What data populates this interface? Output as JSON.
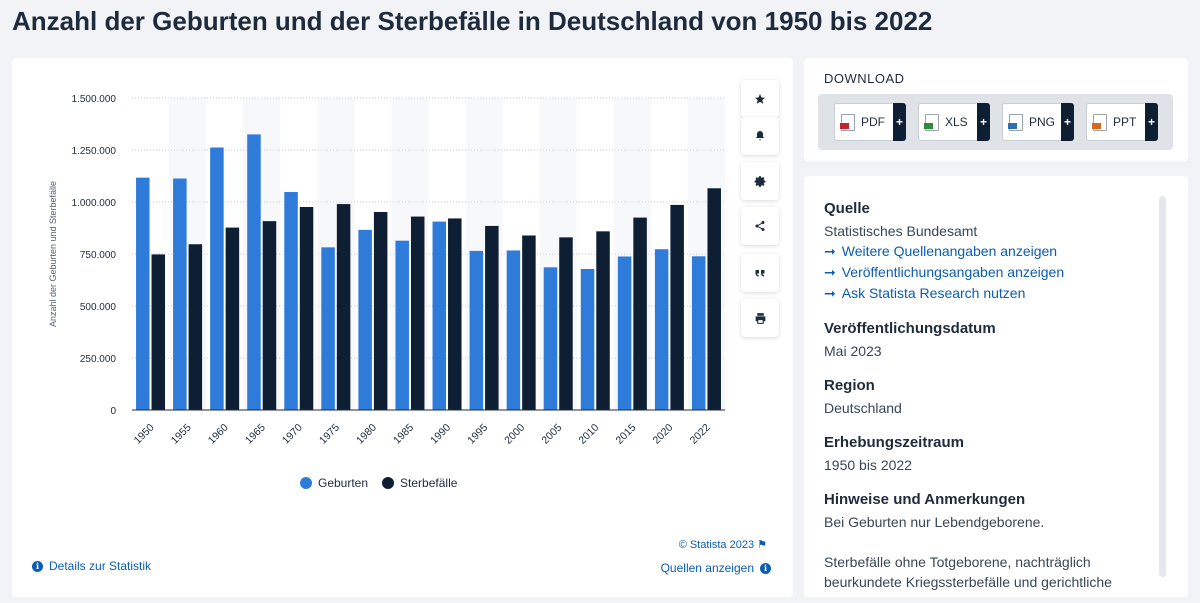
{
  "title": "Anzahl der Geburten und der Sterbefälle in Deutschland von 1950 bis 2022",
  "chart_data": {
    "type": "bar",
    "ylabel": "Anzahl der Geburten und Sterbefälle",
    "xlabel": "",
    "ylim": [
      0,
      1500000
    ],
    "yticks": [
      0,
      250000,
      500000,
      750000,
      1000000,
      1250000,
      1500000
    ],
    "ytick_labels": [
      "0",
      "250.000",
      "500.000",
      "750.000",
      "1.000.000",
      "1.250.000",
      "1.500.000"
    ],
    "categories": [
      "1950",
      "1955",
      "1960",
      "1965",
      "1970",
      "1975",
      "1980",
      "1985",
      "1990",
      "1995",
      "2000",
      "2005",
      "2010",
      "2015",
      "2020",
      "2022"
    ],
    "series": [
      {
        "name": "Geburten",
        "color": "#2f7bd9",
        "values": [
          1117000,
          1113000,
          1262000,
          1325000,
          1048000,
          782000,
          866000,
          814000,
          906000,
          765000,
          767000,
          686000,
          678000,
          738000,
          773000,
          739000
        ]
      },
      {
        "name": "Sterbefälle",
        "color": "#0f1f33",
        "values": [
          748000,
          797000,
          877000,
          908000,
          976000,
          990000,
          952000,
          930000,
          921000,
          885000,
          839000,
          830000,
          859000,
          925000,
          986000,
          1066000
        ]
      }
    ],
    "grid": true,
    "legend_position": "bottom-center"
  },
  "toolbar": {
    "icons": [
      "star-icon",
      "bell-icon",
      "gear-icon",
      "share-icon",
      "quote-icon",
      "print-icon"
    ]
  },
  "footer": {
    "copyright": "© Statista 2023",
    "details_link": "Details zur Statistik",
    "sources_link": "Quellen anzeigen"
  },
  "download": {
    "title": "DOWNLOAD",
    "buttons": [
      {
        "label": "PDF",
        "color": "#c0262d"
      },
      {
        "label": "XLS",
        "color": "#2e8b3a"
      },
      {
        "label": "PNG",
        "color": "#2f6fb0"
      },
      {
        "label": "PPT",
        "color": "#d2691e"
      }
    ],
    "plus": "+"
  },
  "info": {
    "source_heading": "Quelle",
    "source_text": "Statistisches Bundesamt",
    "links": [
      "Weitere Quellenangaben anzeigen",
      "Veröffentlichungsangaben anzeigen",
      "Ask Statista Research nutzen"
    ],
    "pub_date_heading": "Veröffentlichungsdatum",
    "pub_date": "Mai 2023",
    "region_heading": "Region",
    "region": "Deutschland",
    "period_heading": "Erhebungszeitraum",
    "period": "1950 bis 2022",
    "notes_heading": "Hinweise und Anmerkungen",
    "notes_1": "Bei Geburten nur Lebendgeborene.",
    "notes_2": "Sterbefälle ohne Totgeborene, nachträglich beurkundete Kriegssterbefälle und gerichtliche"
  }
}
